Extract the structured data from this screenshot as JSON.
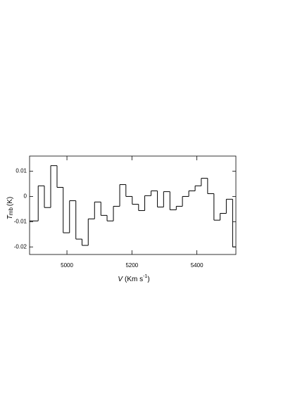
{
  "chart_data": {
    "type": "step",
    "x_label": {
      "symbol": "V",
      "unit_open": "(Km s",
      "exponent": "-1",
      "unit_close": ")"
    },
    "y_label": {
      "symbol": "T",
      "subscript": "mb",
      "unit": "(K)"
    },
    "x": [
      4902,
      4921,
      4940,
      4960,
      4979,
      4998,
      5018,
      5037,
      5056,
      5075,
      5095,
      5114,
      5133,
      5153,
      5172,
      5191,
      5211,
      5230,
      5249,
      5269,
      5288,
      5307,
      5327,
      5346,
      5365,
      5385,
      5404,
      5423,
      5443,
      5462,
      5481,
      5500,
      5520
    ],
    "values": [
      -0.0097,
      0.0042,
      -0.0044,
      0.0122,
      0.0036,
      -0.0144,
      -0.0017,
      -0.0169,
      -0.0194,
      -0.0089,
      -0.0022,
      -0.0075,
      -0.0097,
      -0.0039,
      0.0047,
      0,
      -0.0031,
      -0.0056,
      0.0003,
      0.0022,
      -0.0042,
      0.0019,
      -0.0053,
      -0.0039,
      0,
      0.0022,
      0.0042,
      0.0072,
      0.0011,
      -0.0094,
      -0.0067,
      -0.0011,
      -0.02
    ],
    "color": "#000000",
    "xlim": [
      4885,
      5520
    ],
    "xticks": [
      5000,
      5200,
      5400
    ],
    "ylim": [
      -0.023,
      0.016
    ],
    "yticks": [
      0.01,
      0,
      -0.01,
      -0.02
    ]
  }
}
